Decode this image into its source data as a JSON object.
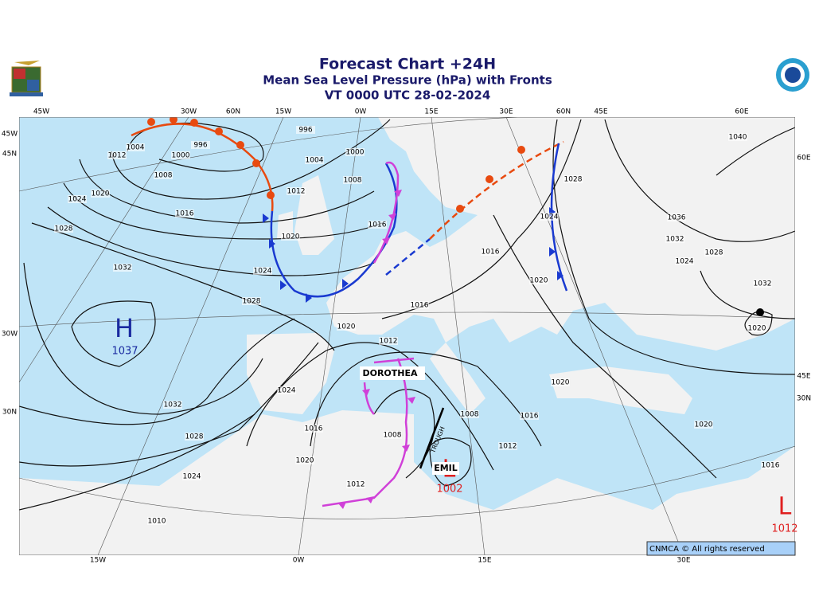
{
  "header": {
    "title": "Forecast Chart +24H",
    "subtitle": "Mean Sea Level Pressure (hPa) with Fronts",
    "valid_time": "VT 0000 UTC 28-02-2024"
  },
  "top_labels": [
    "45W",
    "30W",
    "60N",
    "15W",
    "0W",
    "15E",
    "30E",
    "60N",
    "45E",
    "60E"
  ],
  "bottom_labels": [
    "15W",
    "0W",
    "15E",
    "30E"
  ],
  "left_labels": [
    "45W",
    "45N",
    "30W",
    "30N"
  ],
  "right_labels": [
    "60E",
    "45E",
    "30N"
  ],
  "isobar_labels": [
    "1004",
    "996",
    "1000",
    "1008",
    "1012",
    "1020",
    "1024",
    "1016",
    "1012",
    "996",
    "1000",
    "1004",
    "1008",
    "1020",
    "1016",
    "1028",
    "1032",
    "1024",
    "1028",
    "1020",
    "1016",
    "1012",
    "1016",
    "1020",
    "1024",
    "1028",
    "1040",
    "1036",
    "1032",
    "1024",
    "1028",
    "1032",
    "1020",
    "1024",
    "1032",
    "1028",
    "1024",
    "1016",
    "1020",
    "1012",
    "1008",
    "1008",
    "1012",
    "1016",
    "1020",
    "1020",
    "1016",
    "1010"
  ],
  "systems": [
    {
      "symbol": "H",
      "pressure": "1037"
    },
    {
      "symbol": "L",
      "name": "EMIL",
      "pressure": "1002"
    },
    {
      "symbol": "L",
      "pressure": "1012"
    }
  ],
  "names": [
    "DOROTHEA"
  ],
  "trough_label": "TROUGH",
  "footer": "CNMCA © All rights reserved"
}
